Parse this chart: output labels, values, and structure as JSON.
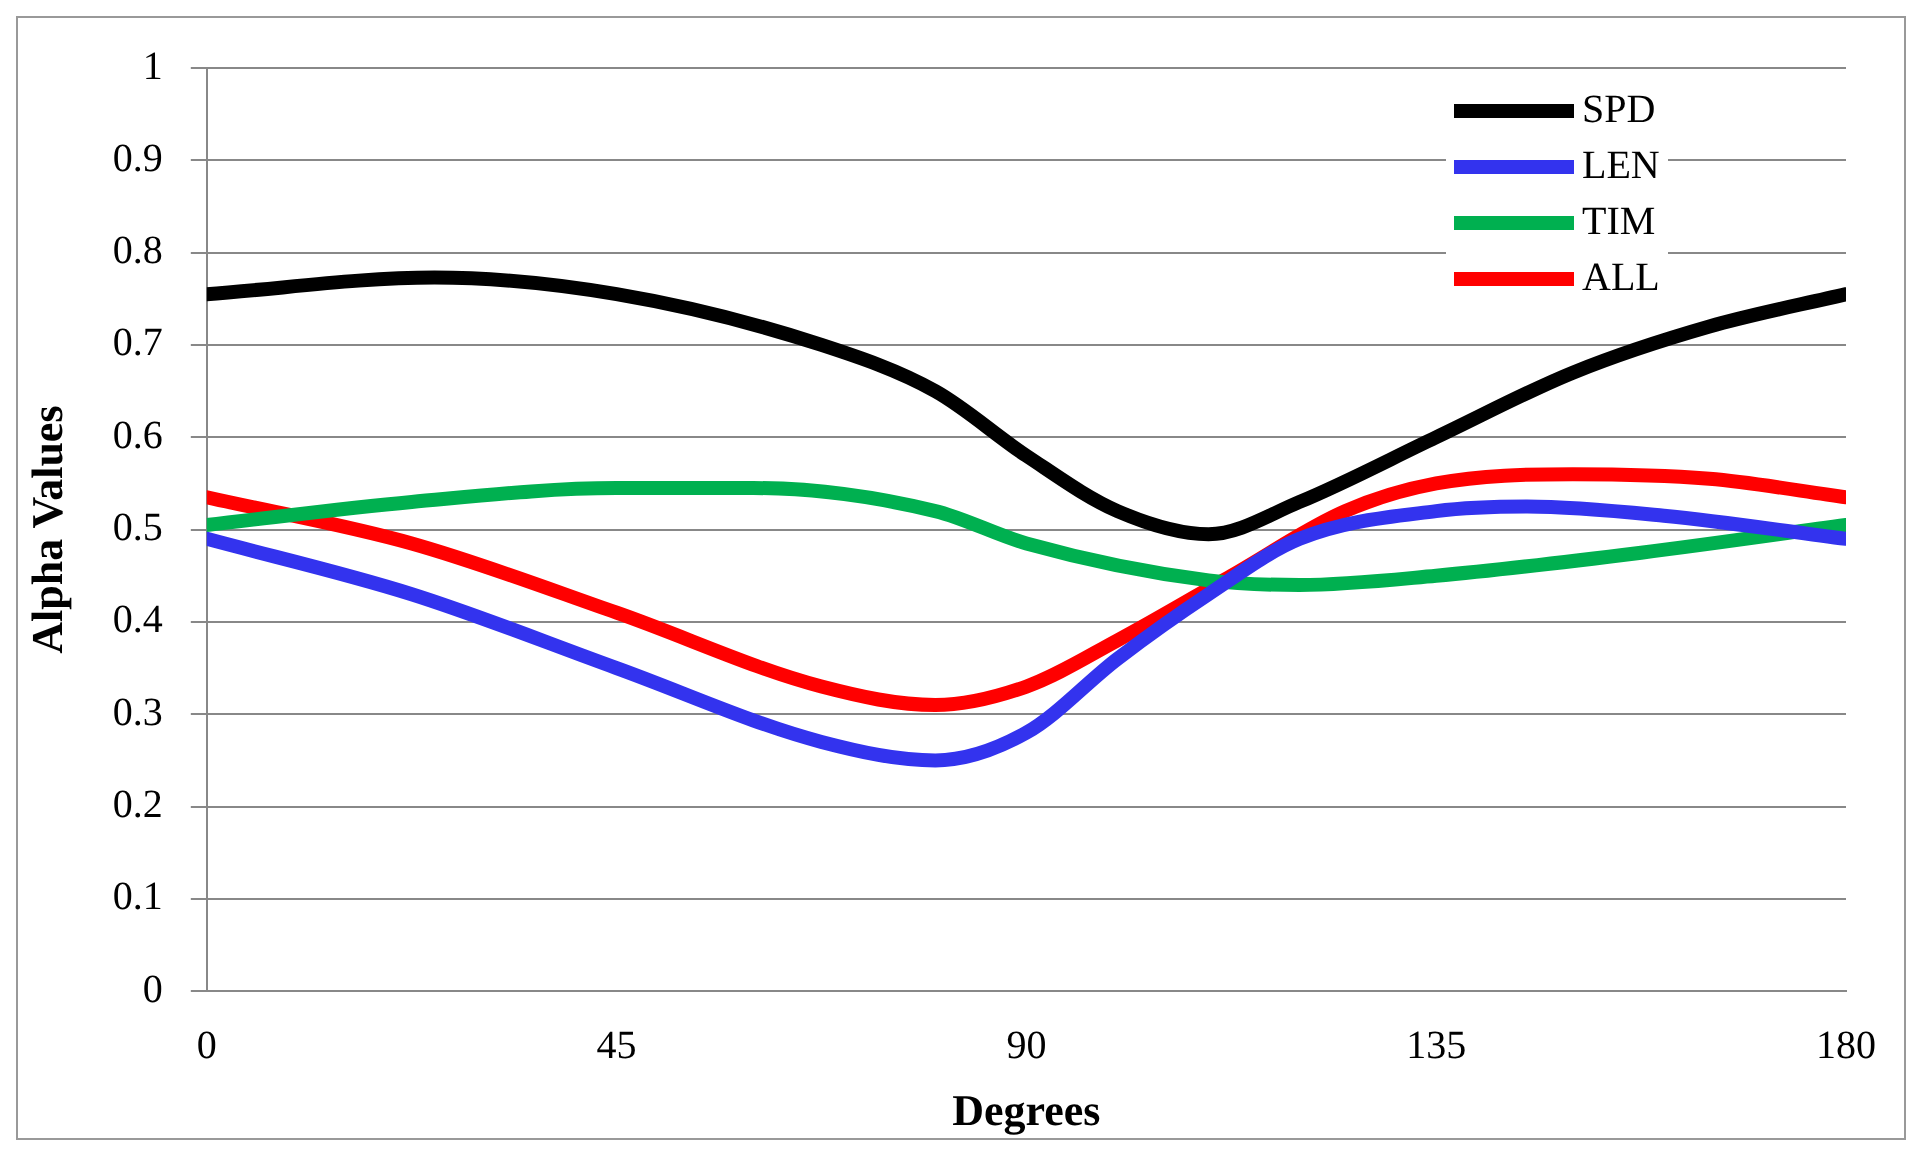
{
  "chart_data": {
    "type": "line",
    "xlabel": "Degrees",
    "ylabel": "Alpha Values",
    "xlim": [
      0,
      180
    ],
    "xticks": [
      0,
      45,
      90,
      135,
      180
    ],
    "ylim": [
      0,
      1
    ],
    "yticks": [
      0,
      0.1,
      0.2,
      0.3,
      0.4,
      0.5,
      0.6,
      0.7,
      0.8,
      0.9,
      1
    ],
    "grid": "y",
    "legend": "top right",
    "marker": "none",
    "line_style": "solid",
    "series": [
      {
        "name": "SPD",
        "color": "#000000",
        "x": [
          0,
          25,
          45,
          67.5,
          80,
          90,
          100,
          110,
          120,
          135,
          150,
          165,
          180
        ],
        "values": [
          0.755,
          0.773,
          0.755,
          0.7,
          0.65,
          0.58,
          0.52,
          0.495,
          0.53,
          0.6,
          0.67,
          0.72,
          0.755
        ]
      },
      {
        "name": "LEN",
        "color": "#3333ee",
        "x": [
          0,
          22.5,
          45,
          67.5,
          80,
          90,
          100,
          110,
          120,
          135,
          145,
          160,
          180
        ],
        "values": [
          0.49,
          0.43,
          0.35,
          0.27,
          0.25,
          0.28,
          0.36,
          0.43,
          0.49,
          0.52,
          0.525,
          0.515,
          0.49
        ]
      },
      {
        "name": "TIM",
        "color": "#00b050",
        "x": [
          0,
          22.5,
          45,
          60,
          80,
          90,
          110,
          120,
          135,
          157.5,
          180
        ],
        "values": [
          0.505,
          0.53,
          0.545,
          0.545,
          0.52,
          0.485,
          0.445,
          0.44,
          0.45,
          0.475,
          0.505
        ]
      },
      {
        "name": "ALL",
        "color": "#ff0000",
        "x": [
          0,
          22.5,
          45,
          67.5,
          80,
          90,
          100,
          112.5,
          125,
          135,
          150,
          165,
          180
        ],
        "values": [
          0.535,
          0.485,
          0.41,
          0.33,
          0.31,
          0.33,
          0.38,
          0.45,
          0.52,
          0.55,
          0.56,
          0.555,
          0.535
        ]
      }
    ]
  }
}
